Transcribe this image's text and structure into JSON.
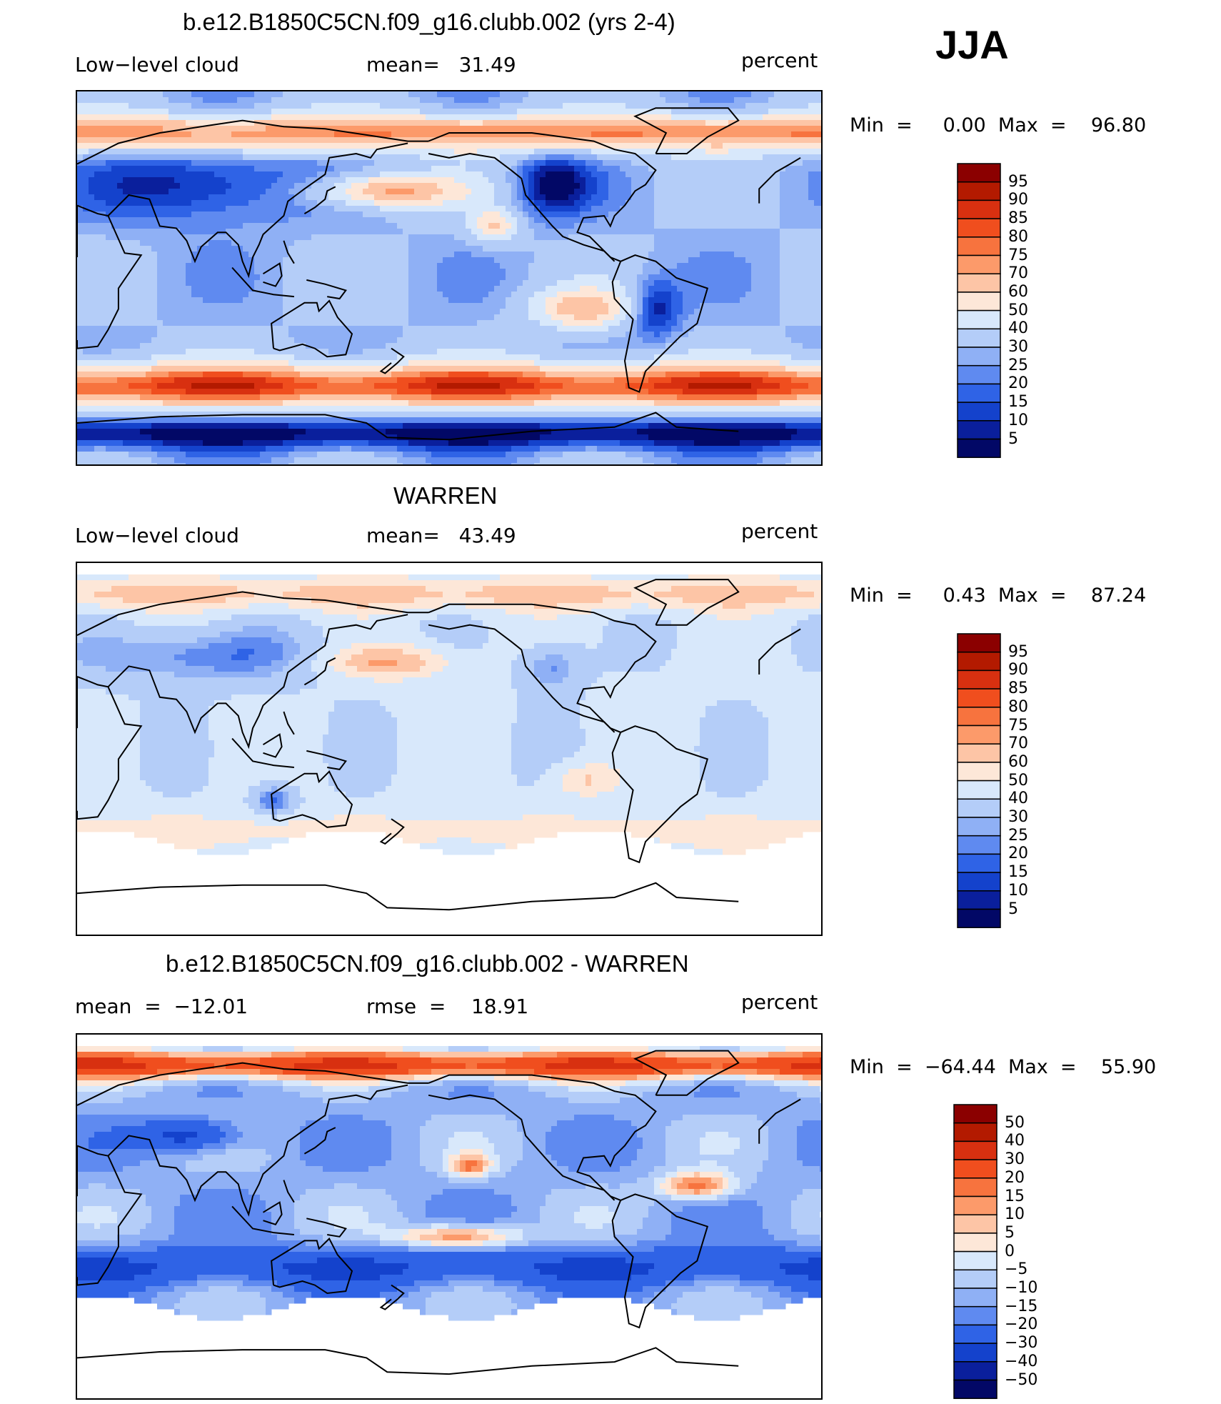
{
  "season": "JJA",
  "panels": [
    {
      "id": "model",
      "title": "b.e12.B1850C5CN.f09_g16.clubb.002 (yrs 2-4)",
      "left_label": "Low−level cloud",
      "center_label": "mean=   31.49",
      "right_label": "percent",
      "minmax": "Min  =     0.00  Max  =    96.80",
      "colorbar_labels": [
        "95",
        "90",
        "85",
        "80",
        "75",
        "70",
        "60",
        "50",
        "40",
        "30",
        "25",
        "20",
        "15",
        "10",
        "5"
      ]
    },
    {
      "id": "obs",
      "title": "WARREN",
      "left_label": "Low−level cloud",
      "center_label": "mean=   43.49",
      "right_label": "percent",
      "minmax": "Min  =     0.43  Max  =    87.24",
      "colorbar_labels": [
        "95",
        "90",
        "85",
        "80",
        "75",
        "70",
        "60",
        "50",
        "40",
        "30",
        "25",
        "20",
        "15",
        "10",
        "5"
      ]
    },
    {
      "id": "diff",
      "title": "b.e12.B1850C5CN.f09_g16.clubb.002 - WARREN",
      "left_label": "mean  =  −12.01",
      "center_label": "rmse  =    18.91",
      "right_label": "percent",
      "minmax": "Min  =  −64.44  Max  =    55.90",
      "colorbar_labels": [
        "50",
        "40",
        "30",
        "20",
        "15",
        "10",
        "5",
        "0",
        "−5",
        "−10",
        "−15",
        "−20",
        "−30",
        "−40",
        "−50"
      ]
    }
  ],
  "colors": {
    "scale": [
      "#8b0000",
      "#b31a00",
      "#d83010",
      "#f04e1e",
      "#f7733e",
      "#fc9a6a",
      "#fdc5a6",
      "#fde7d8",
      "#d8e8fb",
      "#b4cdf8",
      "#8fb0f5",
      "#5f8af0",
      "#2f63e6",
      "#1442cc",
      "#0a1f9c",
      "#020866"
    ]
  }
}
